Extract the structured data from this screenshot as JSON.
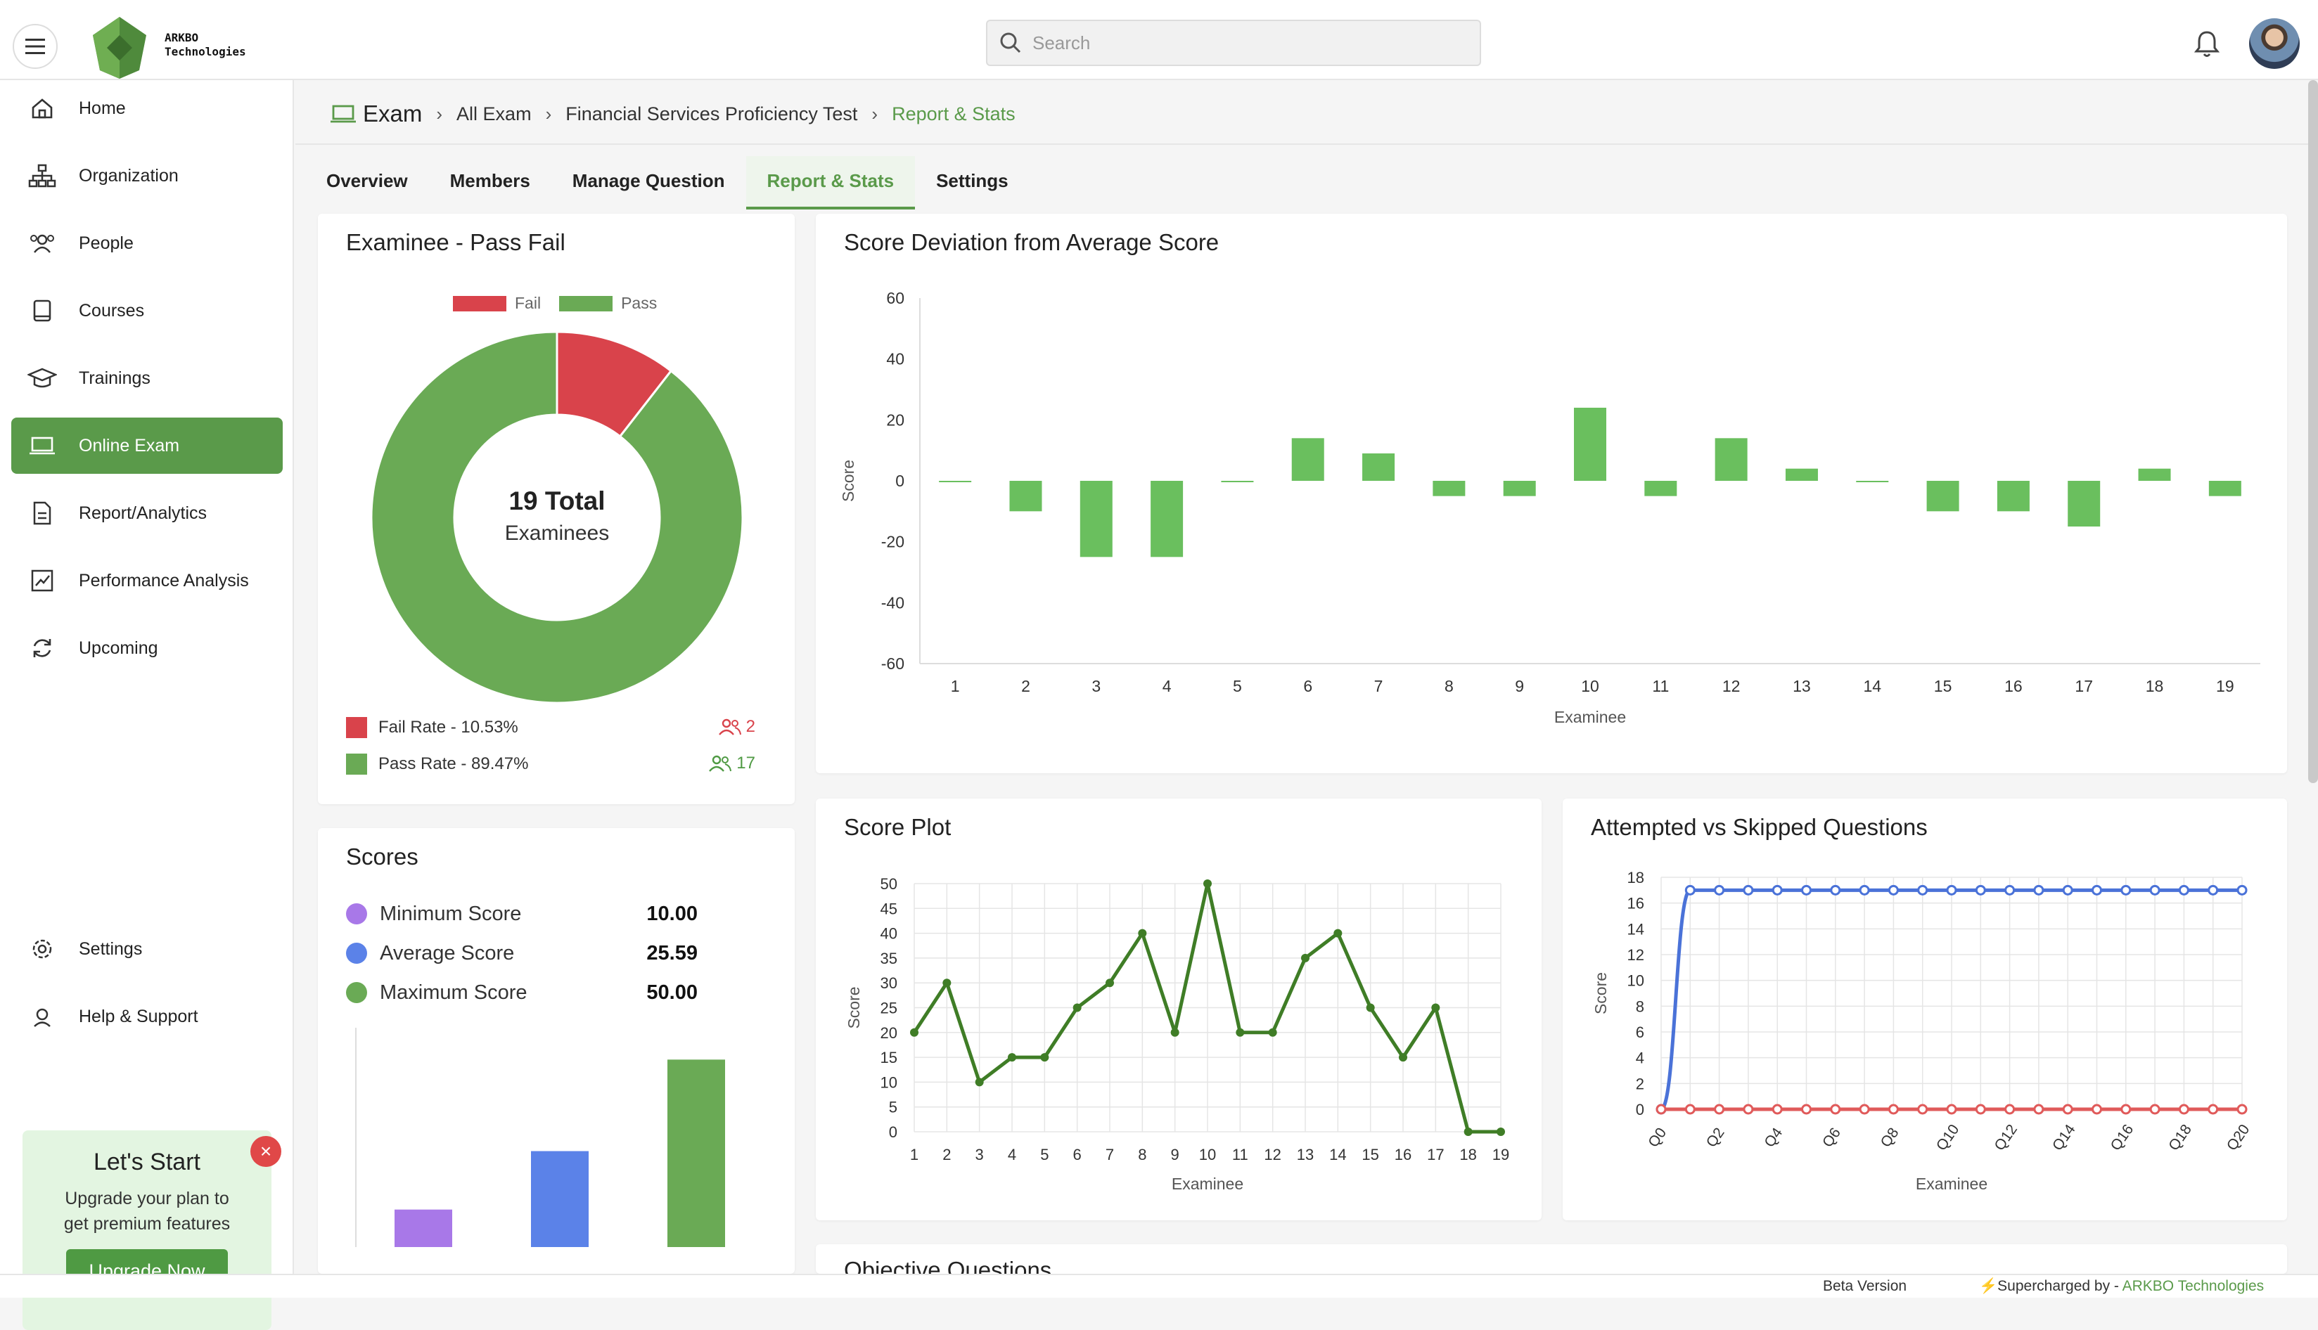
{
  "brand": {
    "logo_text_line1": "ARKBO",
    "logo_text_line2": "Technologies"
  },
  "search": {
    "placeholder": "Search"
  },
  "sidebar": {
    "items": [
      {
        "label": "Home",
        "icon": "home-icon"
      },
      {
        "label": "Organization",
        "icon": "org-chart-icon"
      },
      {
        "label": "People",
        "icon": "people-icon"
      },
      {
        "label": "Courses",
        "icon": "book-icon"
      },
      {
        "label": "Trainings",
        "icon": "graduation-cap-icon"
      },
      {
        "label": "Online Exam",
        "icon": "laptop-icon",
        "active": true
      },
      {
        "label": "Report/Analytics",
        "icon": "report-icon"
      },
      {
        "label": "Performance Analysis",
        "icon": "trend-chart-icon"
      },
      {
        "label": "Upcoming",
        "icon": "refresh-icon"
      }
    ],
    "bottom_items": [
      {
        "label": "Settings",
        "icon": "gear-icon"
      },
      {
        "label": "Help & Support",
        "icon": "support-icon"
      }
    ],
    "upgrade": {
      "title": "Let's Start",
      "subtitle_line1": "Upgrade your plan to",
      "subtitle_line2": "get premium features",
      "button": "Upgrade Now"
    }
  },
  "breadcrumb": {
    "root": "Exam",
    "items": [
      "All Exam",
      "Financial Services Proficiency Test",
      "Report & Stats"
    ]
  },
  "tabs": [
    "Overview",
    "Members",
    "Manage Question",
    "Report & Stats",
    "Settings"
  ],
  "active_tab": "Report & Stats",
  "pass_fail": {
    "title": "Examinee - Pass Fail",
    "legend": [
      "Fail",
      "Pass"
    ],
    "center_value": "19 Total",
    "center_label": "Examinees",
    "fail_rate_label": "Fail Rate - 10.53%",
    "pass_rate_label": "Pass Rate - 89.47%",
    "fail_count": "2",
    "pass_count": "17",
    "colors": {
      "fail": "#d9434b",
      "pass": "#6aaa55"
    }
  },
  "scores": {
    "title": "Scores",
    "rows": [
      {
        "label": "Minimum Score",
        "value": "10.00",
        "color": "#a878e8"
      },
      {
        "label": "Average Score",
        "value": "25.59",
        "color": "#5b82e8"
      },
      {
        "label": "Maximum Score",
        "value": "50.00",
        "color": "#6aaa55"
      }
    ]
  },
  "deviation_card": {
    "title": "Score Deviation from Average Score"
  },
  "score_plot_card": {
    "title": "Score Plot"
  },
  "attempted_card": {
    "title": "Attempted vs Skipped Questions"
  },
  "objective_card": {
    "title": "Objective Questions"
  },
  "chart_data": [
    {
      "type": "pie",
      "title": "Examinee - Pass Fail",
      "categories": [
        "Fail",
        "Pass"
      ],
      "values": [
        2,
        17
      ],
      "colors": [
        "#d9434b",
        "#6aaa55"
      ],
      "legend": "top"
    },
    {
      "type": "bar",
      "title": "Scores",
      "categories": [
        "Minimum Score",
        "Average Score",
        "Maximum Score"
      ],
      "values": [
        10.0,
        25.59,
        50.0
      ],
      "colors": [
        "#a878e8",
        "#5b82e8",
        "#6aaa55"
      ],
      "ylim": [
        0,
        60
      ]
    },
    {
      "type": "bar",
      "title": "Score Deviation from Average Score",
      "xlabel": "Examinee",
      "ylabel": "Score",
      "categories": [
        "1",
        "2",
        "3",
        "4",
        "5",
        "6",
        "7",
        "8",
        "9",
        "10",
        "11",
        "12",
        "13",
        "14",
        "15",
        "16",
        "17",
        "18",
        "19"
      ],
      "values": [
        0,
        -10,
        -25,
        -25,
        0,
        14,
        9,
        -5,
        -5,
        24,
        -5,
        14,
        4,
        0,
        -10,
        -10,
        -15,
        4,
        -5
      ],
      "ylim": [
        -60,
        60
      ],
      "yticks": [
        60,
        40,
        20,
        0,
        -20,
        -40,
        -60
      ],
      "color": "#6abf5e",
      "grid": false
    },
    {
      "type": "line",
      "title": "Score Plot",
      "xlabel": "Examinee",
      "ylabel": "Score",
      "x": [
        "1",
        "2",
        "3",
        "4",
        "5",
        "6",
        "7",
        "8",
        "9",
        "10",
        "11",
        "12",
        "13",
        "14",
        "15",
        "16",
        "17",
        "18",
        "19"
      ],
      "values": [
        20,
        30,
        10,
        15,
        15,
        25,
        30,
        40,
        20,
        50,
        20,
        20,
        35,
        40,
        25,
        15,
        25,
        0,
        0
      ],
      "ylim": [
        0,
        50
      ],
      "yticks": [
        50,
        45,
        40,
        35,
        30,
        25,
        20,
        15,
        10,
        5,
        0
      ],
      "color": "#3f7d26",
      "grid": true
    },
    {
      "type": "line",
      "title": "Attempted vs Skipped Questions",
      "xlabel": "Examinee",
      "ylabel": "Score",
      "x": [
        "Q0",
        "Q1",
        "Q2",
        "Q3",
        "Q4",
        "Q5",
        "Q6",
        "Q7",
        "Q8",
        "Q9",
        "Q10",
        "Q11",
        "Q12",
        "Q13",
        "Q14",
        "Q15",
        "Q16",
        "Q17",
        "Q18",
        "Q19",
        "Q20"
      ],
      "x_tick_labels": [
        "Q0",
        "Q2",
        "Q4",
        "Q6",
        "Q8",
        "Q10",
        "Q12",
        "Q14",
        "Q16",
        "Q18",
        "Q20"
      ],
      "series": [
        {
          "color": "#4a72d8",
          "values": [
            0,
            17,
            17,
            17,
            17,
            17,
            17,
            17,
            17,
            17,
            17,
            17,
            17,
            17,
            17,
            17,
            17,
            17,
            17,
            17,
            17
          ]
        },
        {
          "color": "#e05a5a",
          "values": [
            0,
            0,
            0,
            0,
            0,
            0,
            0,
            0,
            0,
            0,
            0,
            0,
            0,
            0,
            0,
            0,
            0,
            0,
            0,
            0,
            0
          ]
        }
      ],
      "ylim": [
        0,
        18
      ],
      "yticks": [
        18,
        16,
        14,
        12,
        10,
        8,
        6,
        4,
        2,
        0
      ],
      "grid": true
    }
  ],
  "footer": {
    "beta": "Beta Version",
    "supercharged": "⚡Supercharged by - ",
    "company": "ARKBO Technologies"
  }
}
